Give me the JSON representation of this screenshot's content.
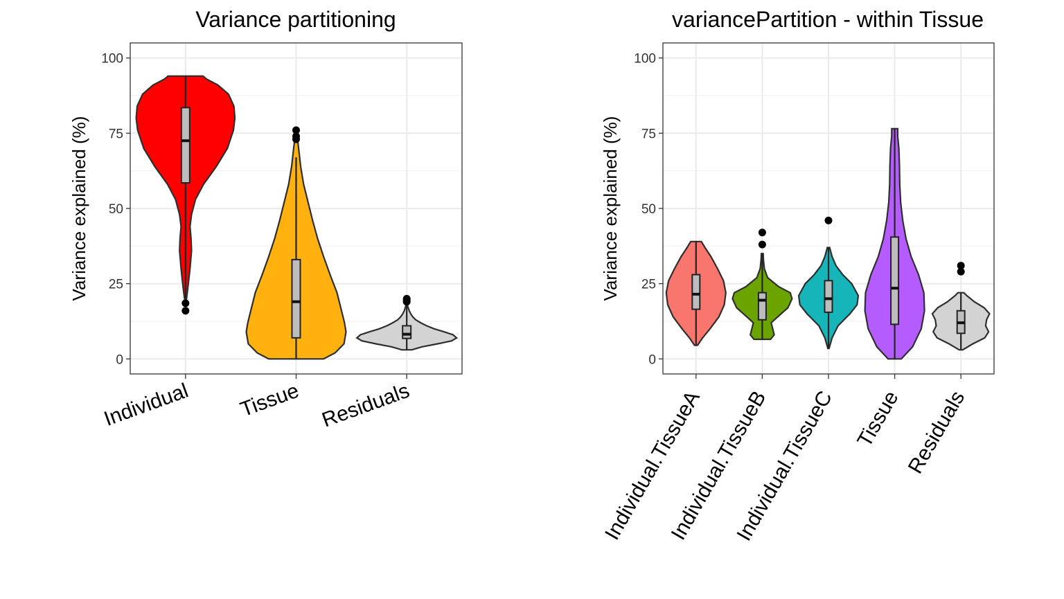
{
  "chart_data": [
    {
      "type": "violin",
      "title": "Variance partitioning",
      "ylabel": "Variance explained (%)",
      "xlabel": "",
      "ylim": [
        -5,
        105
      ],
      "yticks": [
        0,
        25,
        50,
        75,
        100
      ],
      "grid": true,
      "x_label_rotation": 20,
      "categories": [
        "Individual",
        "Tissue",
        "Residuals"
      ],
      "series": [
        {
          "category": "Individual",
          "color": "#FF0000",
          "range": [
            20,
            94
          ],
          "box": {
            "q1": 58.5,
            "median": 72.5,
            "q3": 83.5,
            "whisker_low": 20,
            "whisker_high": 94
          },
          "outliers": [
            16,
            18.5
          ],
          "density": [
            [
              20,
              0.02
            ],
            [
              24,
              0.05
            ],
            [
              30,
              0.09
            ],
            [
              36,
              0.12
            ],
            [
              40,
              0.11
            ],
            [
              44,
              0.09
            ],
            [
              48,
              0.12
            ],
            [
              53,
              0.2
            ],
            [
              58,
              0.36
            ],
            [
              64,
              0.62
            ],
            [
              70,
              0.84
            ],
            [
              76,
              0.96
            ],
            [
              80,
              0.99
            ],
            [
              84,
              0.97
            ],
            [
              88,
              0.86
            ],
            [
              91,
              0.65
            ],
            [
              93,
              0.42
            ],
            [
              94,
              0.35
            ]
          ]
        },
        {
          "category": "Tissue",
          "color": "#FFB10F",
          "range": [
            0,
            74
          ],
          "box": {
            "q1": 7,
            "median": 19,
            "q3": 33,
            "whisker_low": 0,
            "whisker_high": 67
          },
          "outliers": [
            73,
            74,
            76
          ],
          "density": [
            [
              0,
              0.55
            ],
            [
              2,
              0.78
            ],
            [
              5,
              0.96
            ],
            [
              9,
              1.0
            ],
            [
              12,
              0.97
            ],
            [
              16,
              0.91
            ],
            [
              22,
              0.82
            ],
            [
              28,
              0.68
            ],
            [
              34,
              0.55
            ],
            [
              40,
              0.43
            ],
            [
              46,
              0.33
            ],
            [
              52,
              0.24
            ],
            [
              58,
              0.15
            ],
            [
              64,
              0.09
            ],
            [
              70,
              0.05
            ],
            [
              74,
              0.02
            ]
          ]
        },
        {
          "category": "Residuals",
          "color": "#D3D3D3",
          "range": [
            3,
            18
          ],
          "box": {
            "q1": 6.8,
            "median": 8.2,
            "q3": 11,
            "whisker_low": 3,
            "whisker_high": 18
          },
          "outliers": [
            19,
            19.5,
            20
          ],
          "density": [
            [
              3,
              0.1
            ],
            [
              4,
              0.3
            ],
            [
              5,
              0.62
            ],
            [
              6,
              0.9
            ],
            [
              7,
              1.0
            ],
            [
              8,
              0.93
            ],
            [
              9,
              0.75
            ],
            [
              10,
              0.55
            ],
            [
              11,
              0.4
            ],
            [
              12,
              0.28
            ],
            [
              13,
              0.18
            ],
            [
              14,
              0.12
            ],
            [
              15,
              0.08
            ],
            [
              16,
              0.05
            ],
            [
              17,
              0.03
            ],
            [
              18,
              0.01
            ]
          ]
        }
      ]
    },
    {
      "type": "violin",
      "title": "variancePartition - within Tissue",
      "ylabel": "Variance explained (%)",
      "xlabel": "",
      "ylim": [
        -5,
        105
      ],
      "yticks": [
        0,
        25,
        50,
        75,
        100
      ],
      "grid": true,
      "x_label_rotation": 60,
      "categories": [
        "Individual.TissueA",
        "Individual.TissueB",
        "Individual.TissueC",
        "Tissue",
        "Residuals"
      ],
      "series": [
        {
          "category": "Individual.TissueA",
          "color": "#F8766D",
          "range": [
            4.5,
            39
          ],
          "box": {
            "q1": 16.5,
            "median": 21.5,
            "q3": 28,
            "whisker_low": 4.5,
            "whisker_high": 39
          },
          "outliers": [],
          "density": [
            [
              4.5,
              0.05
            ],
            [
              7,
              0.22
            ],
            [
              10,
              0.47
            ],
            [
              14,
              0.77
            ],
            [
              18,
              0.95
            ],
            [
              22,
              1.0
            ],
            [
              26,
              0.92
            ],
            [
              30,
              0.72
            ],
            [
              34,
              0.5
            ],
            [
              37,
              0.3
            ],
            [
              39,
              0.18
            ]
          ]
        },
        {
          "category": "Individual.TissueB",
          "color": "#6BA400",
          "range": [
            6.5,
            35
          ],
          "box": {
            "q1": 13,
            "median": 19.5,
            "q3": 22,
            "whisker_low": 6.5,
            "whisker_high": 35
          },
          "outliers": [
            38,
            42
          ],
          "density": [
            [
              6.5,
              0.28
            ],
            [
              8,
              0.4
            ],
            [
              10,
              0.35
            ],
            [
              12,
              0.3
            ],
            [
              14,
              0.52
            ],
            [
              17,
              0.86
            ],
            [
              20,
              1.0
            ],
            [
              22,
              0.94
            ],
            [
              24,
              0.55
            ],
            [
              27,
              0.18
            ],
            [
              30,
              0.07
            ],
            [
              33,
              0.04
            ],
            [
              35,
              0.03
            ]
          ]
        },
        {
          "category": "Individual.TissueC",
          "color": "#15B5BA",
          "range": [
            3.5,
            37
          ],
          "box": {
            "q1": 15.5,
            "median": 20,
            "q3": 26,
            "whisker_low": 3.5,
            "whisker_high": 37
          },
          "outliers": [
            46
          ],
          "density": [
            [
              3.5,
              0.02
            ],
            [
              7,
              0.12
            ],
            [
              11,
              0.32
            ],
            [
              15,
              0.72
            ],
            [
              18,
              0.96
            ],
            [
              21,
              1.0
            ],
            [
              25,
              0.78
            ],
            [
              28,
              0.48
            ],
            [
              31,
              0.25
            ],
            [
              34,
              0.12
            ],
            [
              37,
              0.04
            ]
          ]
        },
        {
          "category": "Tissue",
          "color": "#B55CFF",
          "range": [
            0,
            76.5
          ],
          "box": {
            "q1": 11.5,
            "median": 23.5,
            "q3": 40.5,
            "whisker_low": 0,
            "whisker_high": 76.5
          },
          "outliers": [],
          "density": [
            [
              0,
              0.22
            ],
            [
              4,
              0.6
            ],
            [
              10,
              0.89
            ],
            [
              16,
              1.0
            ],
            [
              22,
              0.98
            ],
            [
              28,
              0.8
            ],
            [
              34,
              0.55
            ],
            [
              40,
              0.38
            ],
            [
              46,
              0.27
            ],
            [
              52,
              0.2
            ],
            [
              58,
              0.17
            ],
            [
              64,
              0.16
            ],
            [
              70,
              0.14
            ],
            [
              74,
              0.1
            ],
            [
              76.5,
              0.1
            ]
          ]
        },
        {
          "category": "Residuals",
          "color": "#D3D3D3",
          "range": [
            3,
            22
          ],
          "box": {
            "q1": 8.5,
            "median": 12,
            "q3": 16,
            "whisker_low": 3,
            "whisker_high": 22
          },
          "outliers": [
            29,
            31
          ],
          "density": [
            [
              3,
              0.06
            ],
            [
              5,
              0.4
            ],
            [
              7,
              0.8
            ],
            [
              9,
              0.93
            ],
            [
              11,
              0.83
            ],
            [
              13,
              0.86
            ],
            [
              15,
              0.96
            ],
            [
              17,
              0.78
            ],
            [
              19,
              0.45
            ],
            [
              21,
              0.2
            ],
            [
              22,
              0.1
            ]
          ]
        }
      ]
    }
  ]
}
